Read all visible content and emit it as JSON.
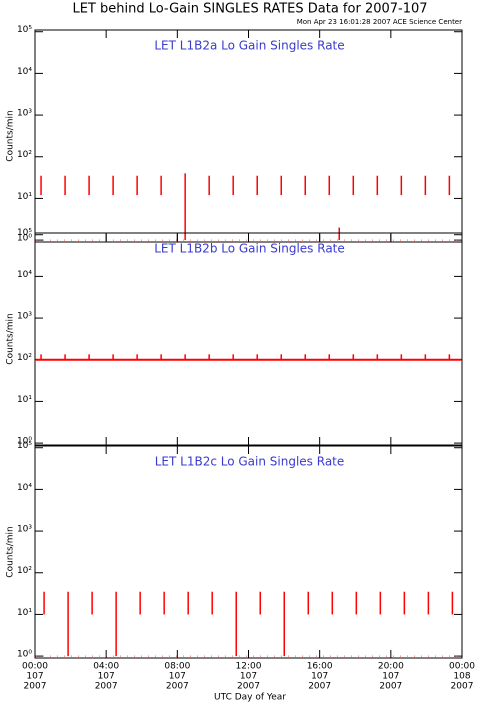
{
  "header": {
    "title": "LET behind Lo-Gain SINGLES RATES Data for 2007-107",
    "subtitle": "Mon Apr 23 16:01:28 2007 ACE Science Center",
    "xlabel": "UTC Day of Year"
  },
  "chart_data": [
    {
      "type": "spike",
      "title": "LET L1B2a Lo Gain Singles Rate",
      "ylabel": "Counts/min",
      "log": true,
      "color": "#ff0000",
      "ylim": [
        0.9,
        110000
      ],
      "yticks": [
        {
          "value": 1,
          "label": "10⁰"
        },
        {
          "value": 10,
          "label": "10¹"
        },
        {
          "value": 100,
          "label": "10²"
        },
        {
          "value": 1000,
          "label": "10³"
        },
        {
          "value": 10000,
          "label": "10⁴"
        },
        {
          "value": 100000,
          "label": "10⁵"
        }
      ],
      "baseline": 1,
      "x": [
        0.34,
        1.69,
        3.04,
        4.39,
        5.74,
        7.09,
        8.44,
        9.79,
        11.14,
        12.49,
        13.84,
        15.19,
        16.54,
        17.1,
        17.89,
        19.24,
        20.59,
        21.94,
        23.29
      ],
      "high": [
        35,
        35,
        35,
        35,
        35,
        35,
        40,
        35,
        35,
        35,
        35,
        35,
        35,
        2,
        35,
        35,
        35,
        35,
        35
      ],
      "low": [
        12,
        12,
        12,
        12,
        12,
        12,
        1,
        12,
        12,
        12,
        12,
        12,
        12,
        1,
        12,
        12,
        12,
        12,
        12
      ]
    },
    {
      "type": "spike",
      "title": "LET L1B2b Lo Gain Singles Rate",
      "ylabel": "Counts/min",
      "log": true,
      "color": "#ff0000",
      "ylim": [
        0.9,
        110000
      ],
      "yticks": [
        {
          "value": 1,
          "label": "10⁰"
        },
        {
          "value": 10,
          "label": "10¹"
        },
        {
          "value": 100,
          "label": "10²"
        },
        {
          "value": 1000,
          "label": "10³"
        },
        {
          "value": 10000,
          "label": "10⁴"
        },
        {
          "value": 100000,
          "label": "10⁵"
        }
      ],
      "baseline": 100,
      "x": [
        0.34,
        1.69,
        3.04,
        4.39,
        5.74,
        7.09,
        8.44,
        9.79,
        11.14,
        12.49,
        13.84,
        15.19,
        16.54,
        17.89,
        19.24,
        20.59,
        21.94,
        23.29
      ],
      "high": [
        135,
        135,
        135,
        135,
        135,
        135,
        135,
        135,
        135,
        135,
        135,
        135,
        135,
        135,
        135,
        135,
        135,
        135
      ],
      "low": [
        100,
        100,
        100,
        100,
        100,
        100,
        100,
        100,
        100,
        100,
        100,
        100,
        100,
        100,
        100,
        100,
        100,
        100
      ]
    },
    {
      "type": "spike",
      "title": "LET L1B2c Lo Gain Singles Rate",
      "ylabel": "Counts/min",
      "log": true,
      "color": "#ff0000",
      "ylim": [
        0.9,
        110000
      ],
      "yticks": [
        {
          "value": 1,
          "label": "10⁰"
        },
        {
          "value": 10,
          "label": "10¹"
        },
        {
          "value": 100,
          "label": "10²"
        },
        {
          "value": 1000,
          "label": "10³"
        },
        {
          "value": 10000,
          "label": "10⁴"
        },
        {
          "value": 100000,
          "label": "10⁵"
        }
      ],
      "baseline": 1,
      "x": [
        0.51,
        1.86,
        3.21,
        4.56,
        5.91,
        7.26,
        8.61,
        9.96,
        11.31,
        12.66,
        14.01,
        15.36,
        16.71,
        18.06,
        19.41,
        20.76,
        22.11,
        23.46
      ],
      "high": [
        35,
        35,
        35,
        35,
        35,
        35,
        35,
        35,
        35,
        35,
        35,
        35,
        35,
        35,
        35,
        35,
        35,
        35
      ],
      "low": [
        10,
        1,
        10,
        1,
        10,
        10,
        10,
        10,
        1,
        10,
        1,
        10,
        10,
        10,
        10,
        10,
        10,
        10
      ],
      "xlim": [
        0,
        24
      ],
      "xticks": [
        {
          "value": 0,
          "label": "00:00",
          "day": "107",
          "year": "2007"
        },
        {
          "value": 4,
          "label": "04:00",
          "day": "107",
          "year": "2007"
        },
        {
          "value": 8,
          "label": "08:00",
          "day": "107",
          "year": "2007"
        },
        {
          "value": 12,
          "label": "12:00",
          "day": "107",
          "year": "2007"
        },
        {
          "value": 16,
          "label": "16:00",
          "day": "107",
          "year": "2007"
        },
        {
          "value": 20,
          "label": "20:00",
          "day": "107",
          "year": "2007"
        },
        {
          "value": 24,
          "label": "00:00",
          "day": "108",
          "year": "2007"
        }
      ]
    }
  ]
}
